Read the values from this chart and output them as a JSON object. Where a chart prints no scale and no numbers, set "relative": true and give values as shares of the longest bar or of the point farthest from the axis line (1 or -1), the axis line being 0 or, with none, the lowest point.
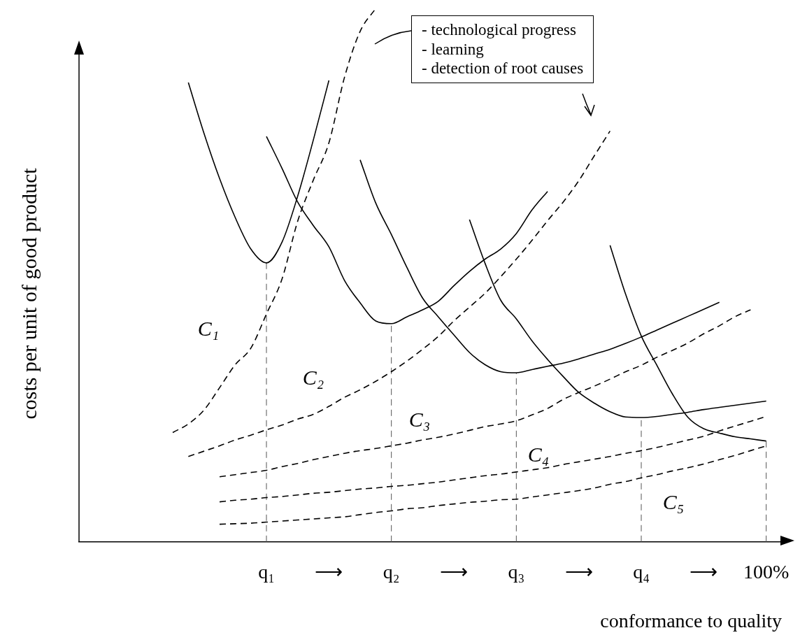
{
  "chart_data": {
    "type": "line",
    "relative": true,
    "xlabel": "conformance to quality",
    "ylabel": "costs per unit of good product",
    "categories": [
      null,
      null,
      null,
      null,
      null,
      null,
      null,
      null,
      null,
      null,
      null,
      null,
      "q₁",
      null,
      null,
      null,
      "⟶",
      null,
      null,
      null,
      "q₂",
      null,
      null,
      null,
      "⟶",
      null,
      null,
      null,
      "q₃",
      null,
      null,
      null,
      "⟶",
      null,
      null,
      null,
      "q₄",
      null,
      null,
      null,
      "⟶",
      null,
      null,
      null,
      "100%",
      null
    ],
    "marker": "none",
    "series": [
      {
        "color": "#000000",
        "line_style": "solid",
        "values": [
          null,
          null,
          null,
          null,
          null,
          null,
          null,
          0.861,
          0.766,
          0.681,
          0.608,
          0.549,
          0.523,
          0.562,
          0.648,
          0.753,
          0.865,
          null,
          null,
          null,
          null,
          null,
          null,
          null,
          null,
          null,
          null,
          null,
          null,
          null,
          null,
          null,
          null,
          null,
          null,
          null,
          null,
          null,
          null,
          null,
          null,
          null,
          null,
          null,
          null,
          null
        ]
      },
      {
        "color": "#000000",
        "line_style": "dashed",
        "values": [
          null,
          null,
          null,
          null,
          null,
          null,
          0.205,
          0.221,
          0.247,
          0.289,
          0.332,
          0.363,
          0.427,
          0.493,
          0.601,
          0.678,
          0.748,
          0.871,
          0.957,
          1,
          null,
          null,
          null,
          null,
          null,
          null,
          null,
          null,
          null,
          null,
          null,
          null,
          null,
          null,
          null,
          null,
          null,
          null,
          null,
          null,
          null,
          null,
          null,
          null,
          null,
          null
        ]
      },
      {
        "color": "#000000",
        "line_style": "solid",
        "values": [
          null,
          null,
          null,
          null,
          null,
          null,
          null,
          null,
          null,
          null,
          null,
          null,
          0.76,
          0.7,
          0.637,
          0.593,
          0.553,
          0.49,
          0.448,
          0.414,
          0.409,
          0.422,
          0.435,
          0.451,
          0.48,
          0.507,
          0.53,
          0.549,
          0.578,
          0.622,
          0.657,
          null,
          null,
          null,
          null,
          null,
          null,
          null,
          null,
          null,
          null,
          null,
          null,
          null,
          null,
          null
        ]
      },
      {
        "color": "#000000",
        "line_style": "dashed",
        "values": [
          null,
          null,
          null,
          null,
          null,
          null,
          null,
          0.16,
          0.17,
          0.18,
          0.191,
          0.2,
          0.21,
          0.219,
          0.23,
          0.239,
          0.254,
          0.271,
          0.285,
          0.301,
          0.319,
          0.339,
          0.361,
          0.385,
          0.414,
          0.44,
          0.466,
          0.497,
          0.53,
          0.565,
          0.602,
          0.637,
          0.677,
          0.724,
          0.77,
          null,
          null,
          null,
          null,
          null,
          null,
          null,
          null,
          null,
          null,
          null
        ]
      },
      {
        "color": "#000000",
        "line_style": "solid",
        "values": [
          null,
          null,
          null,
          null,
          null,
          null,
          null,
          null,
          null,
          null,
          null,
          null,
          null,
          null,
          null,
          null,
          null,
          null,
          0.716,
          0.635,
          0.576,
          0.514,
          0.457,
          0.422,
          0.388,
          0.355,
          0.332,
          0.319,
          0.317,
          0.323,
          0.329,
          0.335,
          0.343,
          0.352,
          0.361,
          0.372,
          0.384,
          0.397,
          0.41,
          0.423,
          0.436,
          0.449,
          null,
          null,
          null,
          null
        ]
      },
      {
        "color": "#000000",
        "line_style": "dashed",
        "values": [
          null,
          null,
          null,
          null,
          null,
          null,
          null,
          null,
          null,
          0.122,
          0.126,
          0.13,
          0.134,
          0.141,
          0.147,
          0.154,
          0.16,
          0.166,
          0.171,
          0.175,
          0.18,
          0.185,
          0.191,
          0.196,
          0.202,
          0.209,
          0.216,
          0.221,
          0.227,
          0.238,
          0.25,
          0.267,
          0.28,
          0.292,
          0.305,
          0.319,
          0.331,
          0.346,
          0.359,
          0.373,
          0.39,
          0.405,
          0.422,
          0.435,
          null,
          null
        ]
      },
      {
        "color": "#000000",
        "line_style": "solid",
        "values": [
          null,
          null,
          null,
          null,
          null,
          null,
          null,
          null,
          null,
          null,
          null,
          null,
          null,
          null,
          null,
          null,
          null,
          null,
          null,
          null,
          null,
          null,
          null,
          null,
          null,
          0.604,
          0.522,
          0.453,
          0.418,
          0.377,
          0.342,
          0.31,
          0.28,
          0.26,
          0.244,
          0.234,
          0.233,
          0.235,
          0.239,
          0.243,
          0.248,
          0.252,
          0.256,
          0.26,
          0.264,
          null
        ]
      },
      {
        "color": "#000000",
        "line_style": "dashed",
        "values": [
          null,
          null,
          null,
          null,
          null,
          null,
          null,
          null,
          null,
          0.075,
          0.078,
          0.08,
          0.083,
          0.085,
          0.088,
          0.091,
          0.093,
          0.096,
          0.099,
          0.101,
          0.104,
          0.106,
          0.109,
          0.112,
          0.116,
          0.12,
          0.124,
          0.127,
          0.131,
          0.135,
          0.139,
          0.145,
          0.15,
          0.155,
          0.16,
          0.166,
          0.171,
          0.177,
          0.184,
          0.191,
          0.198,
          0.208,
          0.217,
          0.226,
          0.235,
          null
        ]
      },
      {
        "color": "#000000",
        "line_style": "solid",
        "values": [
          null,
          null,
          null,
          null,
          null,
          null,
          null,
          null,
          null,
          null,
          null,
          null,
          null,
          null,
          null,
          null,
          null,
          null,
          null,
          null,
          null,
          null,
          null,
          null,
          null,
          null,
          null,
          null,
          null,
          null,
          null,
          null,
          null,
          null,
          0.556,
          0.464,
          0.386,
          0.331,
          0.277,
          0.233,
          0.212,
          0.204,
          0.197,
          0.193,
          0.189,
          null
        ]
      },
      {
        "color": "#000000",
        "line_style": "dashed",
        "values": [
          null,
          null,
          null,
          null,
          null,
          null,
          null,
          null,
          null,
          0.033,
          0.034,
          0.035,
          0.037,
          0.039,
          0.041,
          0.043,
          0.045,
          0.047,
          0.051,
          0.055,
          0.058,
          0.062,
          0.064,
          0.068,
          0.071,
          0.074,
          0.076,
          0.079,
          0.08,
          0.084,
          0.088,
          0.092,
          0.096,
          0.101,
          0.108,
          0.113,
          0.12,
          0.126,
          0.133,
          0.139,
          0.146,
          0.154,
          0.162,
          0.171,
          0.18,
          null
        ]
      }
    ],
    "ref_lines": [
      {
        "axis": "x",
        "value": "q₁",
        "color": "#555555",
        "line_style": "dashed"
      },
      {
        "axis": "x",
        "value": "q₂",
        "color": "#555555",
        "line_style": "dashed"
      },
      {
        "axis": "x",
        "value": "q₃",
        "color": "#555555",
        "line_style": "dashed"
      },
      {
        "axis": "x",
        "value": "q₄",
        "color": "#555555",
        "line_style": "dashed"
      },
      {
        "axis": "x",
        "value": "100%",
        "color": "#555555",
        "line_style": "dashed"
      }
    ],
    "annotations": [
      "- technological progress\n- learning\n- detection of root causes",
      "C₁",
      "C₂",
      "C₃",
      "C₄",
      "C₅"
    ]
  }
}
